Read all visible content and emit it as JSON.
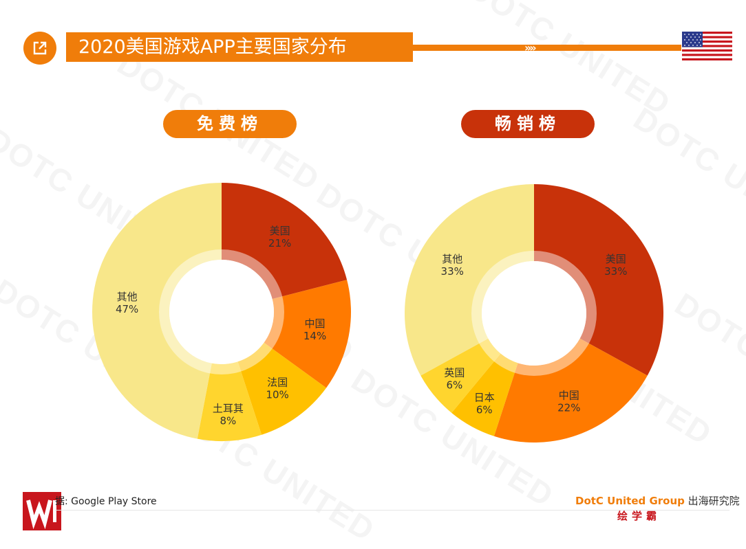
{
  "header": {
    "title": "2020美国游戏APP主要国家分布",
    "arrows": "»»"
  },
  "watermark": "DOTC UNITED",
  "pills": {
    "free": "免费榜",
    "paid": "畅销榜"
  },
  "chart_data": [
    {
      "type": "pie",
      "title": "免费榜",
      "categories": [
        "美国",
        "中国",
        "法国",
        "土耳其",
        "其他"
      ],
      "values": [
        21,
        14,
        10,
        8,
        47
      ],
      "unit": "%",
      "colors": [
        "#c8320a",
        "#ff7a00",
        "#ffc000",
        "#ffd52e",
        "#f8e78a"
      ]
    },
    {
      "type": "pie",
      "title": "畅销榜",
      "categories": [
        "美国",
        "中国",
        "日本",
        "英国",
        "其他"
      ],
      "values": [
        33,
        22,
        6,
        6,
        33
      ],
      "unit": "%",
      "colors": [
        "#c8320a",
        "#ff7a00",
        "#ffc000",
        "#ffd52e",
        "#f8e78a"
      ]
    }
  ],
  "footer": {
    "source": "据: Google Play Store",
    "brand_en": "DotC United Group",
    "brand_cn": " 出海研究院",
    "brand2": "绘学霸"
  }
}
